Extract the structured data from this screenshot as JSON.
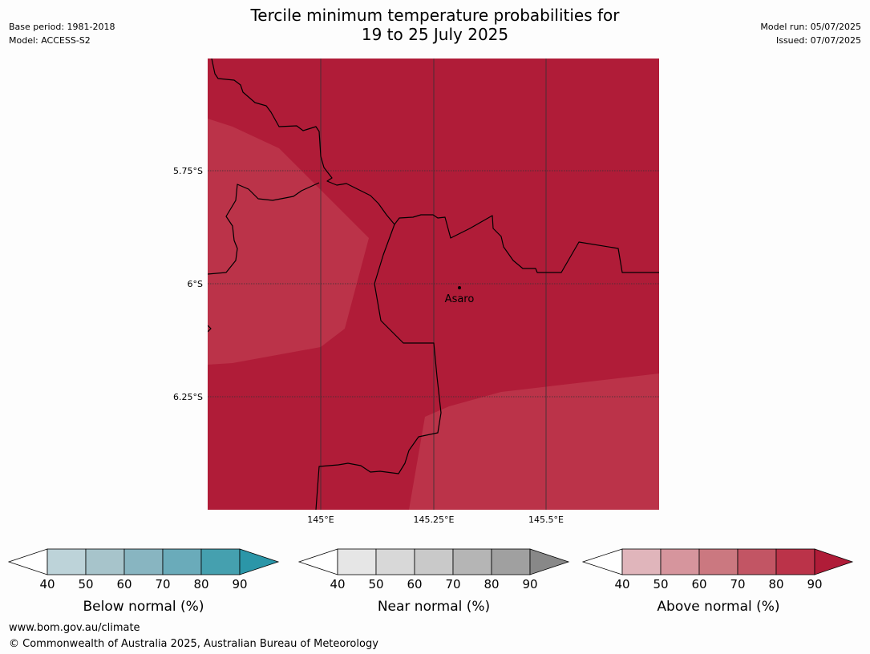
{
  "header": {
    "title_line1": "Tercile minimum temperature probabilities for",
    "title_line2": "19 to 25 July 2025",
    "base_period": "Base period: 1981-2018",
    "model": "Model: ACCESS-S2",
    "model_run": "Model run: 05/07/2025",
    "issued": "Issued: 07/07/2025"
  },
  "map": {
    "lat_labels": [
      "5.75°S",
      "6°S",
      "6.25°S"
    ],
    "lon_labels": [
      "145°E",
      "145.25°E",
      "145.5°E"
    ],
    "place": "Asaro",
    "colors": {
      "above_90": "#b01c38",
      "above_80": "#bb3349",
      "border": "#000000",
      "gridline": "#333333"
    }
  },
  "colorbars": [
    {
      "label": "Below normal (%)",
      "ticks": [
        "40",
        "50",
        "60",
        "70",
        "80",
        "90"
      ],
      "colors": [
        "#ffffff",
        "#bdd3d9",
        "#a7c4cb",
        "#88b5c1",
        "#6aabba",
        "#45a0af",
        "#2b96a8"
      ]
    },
    {
      "label": "Near normal (%)",
      "ticks": [
        "40",
        "50",
        "60",
        "70",
        "80",
        "90"
      ],
      "colors": [
        "#ffffff",
        "#e6e6e6",
        "#d8d8d8",
        "#c9c9c9",
        "#b5b5b5",
        "#a0a0a0",
        "#888888"
      ]
    },
    {
      "label": "Above normal (%)",
      "ticks": [
        "40",
        "50",
        "60",
        "70",
        "80",
        "90"
      ],
      "colors": [
        "#ffffff",
        "#e0b5bb",
        "#d6959d",
        "#cb7880",
        "#c25564",
        "#bb3349",
        "#b01c38"
      ]
    }
  ],
  "footer": {
    "website": "www.bom.gov.au/climate",
    "copyright": "© Commonwealth of Australia 2025, Australian Bureau of Meteorology"
  }
}
